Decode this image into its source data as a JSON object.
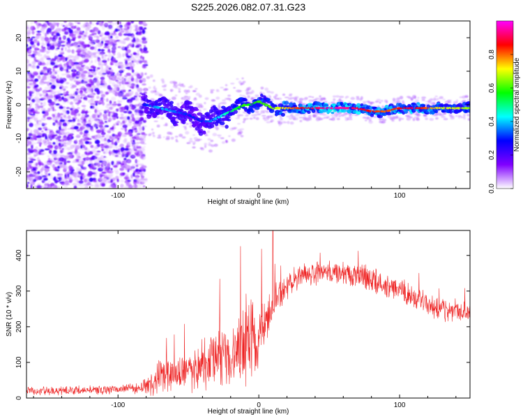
{
  "chart_data": [
    {
      "type": "heatmap",
      "title": "S225.2026.082.07.31.G23",
      "xlabel": "Height of straight line (km)",
      "ylabel": "Frequency (Hz)",
      "xlim": [
        -165,
        150
      ],
      "ylim": [
        -25,
        25
      ],
      "xticks": [
        "-100",
        "0",
        "100"
      ],
      "yticks": [
        "20",
        "10",
        "0",
        "-10",
        "-20"
      ],
      "colorbar": {
        "label": "Normalized spectral amplitude",
        "range": [
          0,
          1
        ],
        "ticks": [
          "0.0",
          "0.2",
          "0.4",
          "0.6",
          "0.8"
        ],
        "colors": [
          "#ffffff",
          "#8000ff",
          "#0000ff",
          "#00ffff",
          "#00ff00",
          "#ffff00",
          "#ff0000",
          "#ff00ff"
        ]
      },
      "ridge": {
        "x": [
          -80,
          -70,
          -60,
          -50,
          -40,
          -35,
          -30,
          -25,
          -20,
          -15,
          -10,
          -5,
          0,
          5,
          10,
          15,
          20,
          30,
          40,
          50,
          60,
          70,
          80,
          90,
          100,
          110,
          120,
          130,
          140,
          150
        ],
        "y": [
          0,
          -1,
          -2,
          -3,
          -5,
          -5,
          -4,
          -3,
          -2,
          -1,
          0,
          0,
          1,
          0,
          -1,
          -1,
          -1,
          -1,
          -1,
          -1,
          -1,
          -1,
          -2,
          -2,
          -1,
          -1,
          -1,
          -1,
          -1,
          -1
        ],
        "peak_amplitude": [
          0.3,
          0.4,
          0.35,
          0.3,
          0.3,
          0.35,
          0.4,
          0.45,
          0.5,
          0.55,
          0.6,
          0.55,
          0.6,
          0.6,
          0.65,
          0.7,
          0.75,
          0.85,
          0.9,
          0.95,
          0.95,
          0.9,
          0.85,
          0.8,
          0.85,
          0.9,
          0.8,
          0.7,
          0.7,
          0.65
        ]
      }
    },
    {
      "type": "line",
      "xlabel": "Height of straight line (km)",
      "ylabel": "SNR (10 * v/v)",
      "xlim": [
        -165,
        150
      ],
      "ylim": [
        0,
        470
      ],
      "xticks": [
        "-100",
        "0",
        "100"
      ],
      "yticks": [
        "0",
        "100",
        "200",
        "300",
        "400"
      ],
      "color": "#ee2222",
      "series": [
        {
          "name": "SNR",
          "x": [
            -165,
            -140,
            -120,
            -100,
            -85,
            -75,
            -70,
            -65,
            -60,
            -55,
            -50,
            -45,
            -40,
            -35,
            -30,
            -25,
            -20,
            -15,
            -10,
            -5,
            0,
            5,
            10,
            15,
            20,
            25,
            30,
            40,
            50,
            60,
            70,
            80,
            90,
            100,
            110,
            120,
            130,
            140,
            150
          ],
          "mean": [
            20,
            20,
            22,
            25,
            28,
            40,
            55,
            60,
            65,
            70,
            75,
            80,
            95,
            105,
            115,
            120,
            130,
            140,
            150,
            160,
            180,
            220,
            260,
            290,
            310,
            330,
            340,
            350,
            355,
            350,
            345,
            335,
            315,
            300,
            280,
            260,
            250,
            245,
            240
          ],
          "amplitude": [
            15,
            15,
            15,
            15,
            18,
            40,
            60,
            60,
            60,
            60,
            70,
            80,
            90,
            100,
            100,
            110,
            110,
            120,
            150,
            140,
            130,
            90,
            60,
            50,
            40,
            40,
            40,
            40,
            40,
            40,
            40,
            40,
            40,
            40,
            40,
            40,
            40,
            35,
            35
          ]
        }
      ]
    }
  ]
}
